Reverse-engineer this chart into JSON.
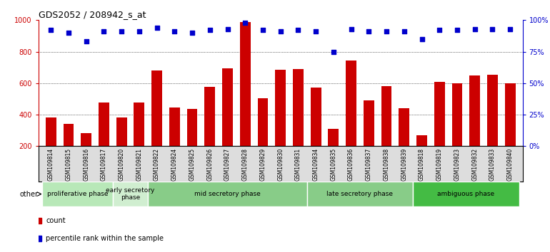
{
  "title": "GDS2052 / 208942_s_at",
  "samples": [
    "GSM109814",
    "GSM109815",
    "GSM109816",
    "GSM109817",
    "GSM109820",
    "GSM109821",
    "GSM109822",
    "GSM109824",
    "GSM109825",
    "GSM109826",
    "GSM109827",
    "GSM109828",
    "GSM109829",
    "GSM109830",
    "GSM109831",
    "GSM109834",
    "GSM109835",
    "GSM109836",
    "GSM109837",
    "GSM109838",
    "GSM109839",
    "GSM109818",
    "GSM109819",
    "GSM109823",
    "GSM109832",
    "GSM109833",
    "GSM109840"
  ],
  "bar_values": [
    380,
    340,
    285,
    475,
    380,
    475,
    680,
    445,
    435,
    575,
    695,
    990,
    505,
    685,
    690,
    570,
    310,
    745,
    490,
    580,
    440,
    270,
    610,
    600,
    650,
    655,
    600
  ],
  "percentile_values": [
    92,
    90,
    83,
    91,
    91,
    91,
    94,
    91,
    90,
    92,
    93,
    98,
    92,
    91,
    92,
    91,
    75,
    93,
    91,
    91,
    91,
    85,
    92,
    92,
    93,
    93,
    93
  ],
  "phases": [
    {
      "label": "proliferative phase",
      "start": 0,
      "end": 4,
      "color": "#b8e8b8"
    },
    {
      "label": "early secretory\nphase",
      "start": 4,
      "end": 6,
      "color": "#d0eed0"
    },
    {
      "label": "mid secretory phase",
      "start": 6,
      "end": 15,
      "color": "#88cc88"
    },
    {
      "label": "late secretory phase",
      "start": 15,
      "end": 21,
      "color": "#88cc88"
    },
    {
      "label": "ambiguous phase",
      "start": 21,
      "end": 27,
      "color": "#44bb44"
    }
  ],
  "bar_color": "#cc0000",
  "dot_color": "#0000cc",
  "ylim_left": [
    200,
    1000
  ],
  "ylim_right": [
    0,
    100
  ],
  "yticks_left": [
    200,
    400,
    600,
    800,
    1000
  ],
  "yticks_right": [
    0,
    25,
    50,
    75,
    100
  ],
  "grid_values": [
    400,
    600,
    800
  ],
  "legend_count_color": "#cc0000",
  "legend_dot_color": "#0000cc"
}
